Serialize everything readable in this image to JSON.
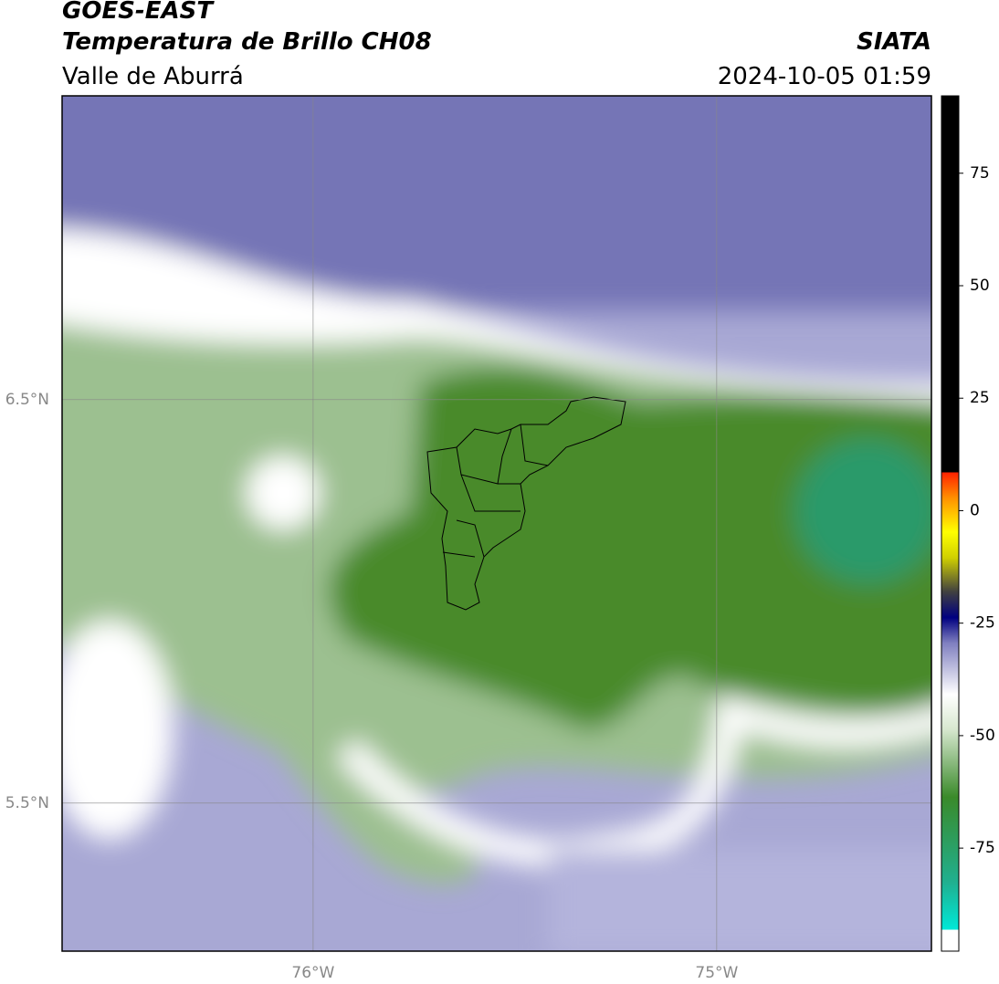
{
  "header": {
    "title": "GOES-EAST",
    "subtitle": "Temperatura de Brillo CH08",
    "region": "Valle de Aburrá",
    "source": "SIATA",
    "datetime": "2024-10-05 01:59"
  },
  "map": {
    "lon_range": [
      -76.622,
      -74.468
    ],
    "lat_range": [
      5.133,
      7.253
    ],
    "lat_ticks": [
      {
        "value": 6.5,
        "label": "6.5°N"
      },
      {
        "value": 5.5,
        "label": "5.5°N"
      }
    ],
    "lon_ticks": [
      {
        "value": -76,
        "label": "76°W"
      },
      {
        "value": -75,
        "label": "75°W"
      }
    ]
  },
  "colorbar": {
    "range": [
      -97.9,
      92.2
    ],
    "ticks": [
      75,
      50,
      25,
      0,
      -25,
      -50,
      -75
    ]
  }
}
